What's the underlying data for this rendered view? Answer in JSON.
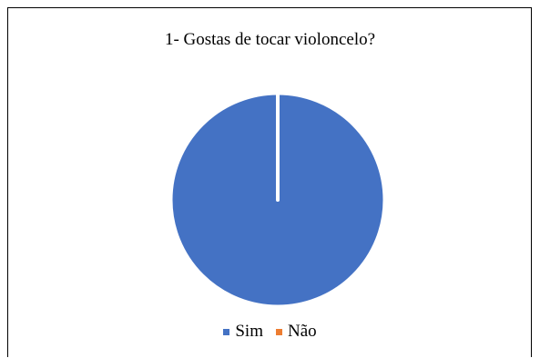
{
  "chart_data": {
    "type": "pie",
    "title": "1- Gostas de tocar violoncelo?",
    "categories": [
      "Sim",
      "Não"
    ],
    "values": [
      100,
      0
    ],
    "colors": [
      "#4472C4",
      "#ED7D31"
    ],
    "legend_position": "bottom"
  }
}
